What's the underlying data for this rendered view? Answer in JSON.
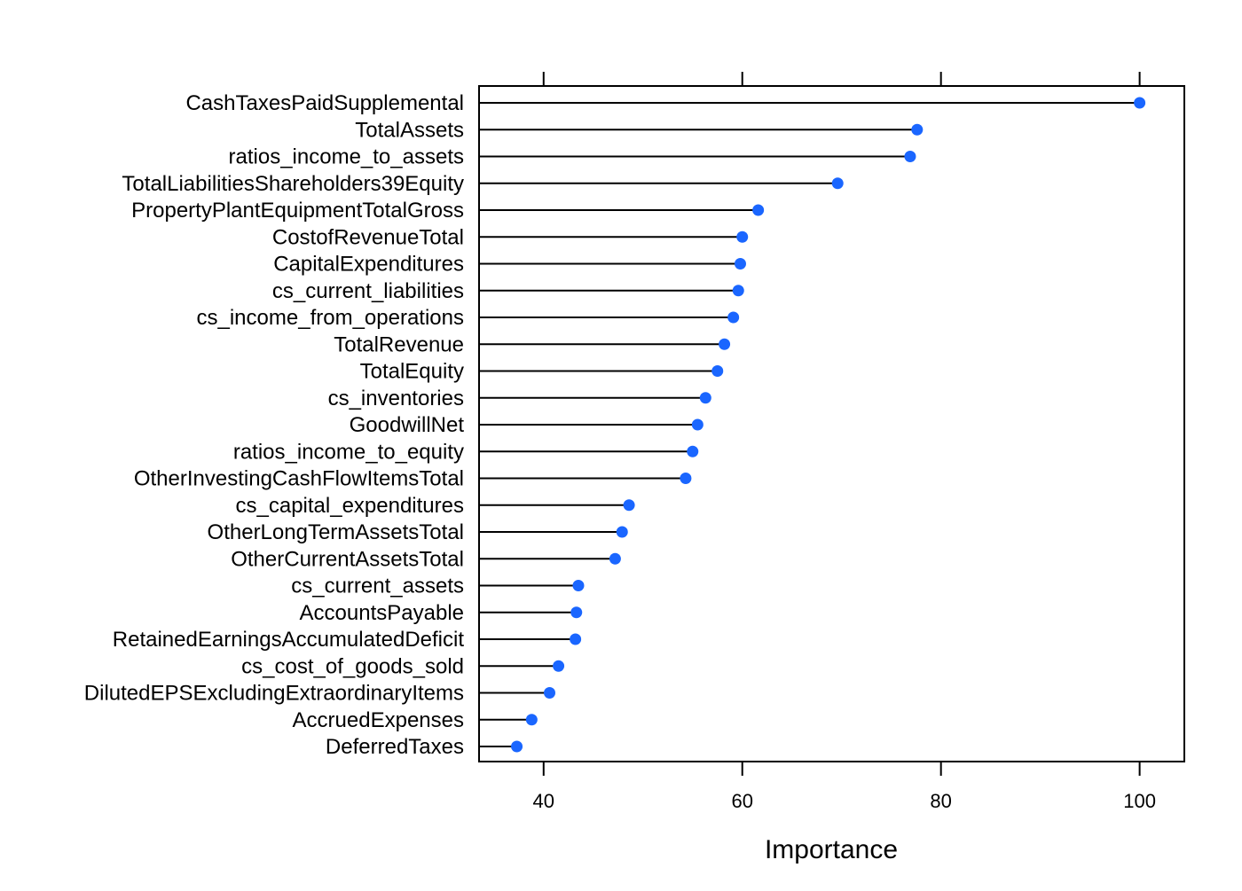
{
  "chart_data": {
    "type": "dot",
    "xlabel": "Importance",
    "xlim": [
      33.5,
      104.5
    ],
    "xticks": [
      40,
      60,
      80,
      100
    ],
    "grid": false,
    "legend": "none",
    "colors": {
      "point": "#1a66ff",
      "line": "#000000",
      "frame": "#000000"
    },
    "categories": [
      "CashTaxesPaidSupplemental",
      "TotalAssets",
      "ratios_income_to_assets",
      "TotalLiabilitiesShareholders39Equity",
      "PropertyPlantEquipmentTotalGross",
      "CostofRevenueTotal",
      "CapitalExpenditures",
      "cs_current_liabilities",
      "cs_income_from_operations",
      "TotalRevenue",
      "TotalEquity",
      "cs_inventories",
      "GoodwillNet",
      "ratios_income_to_equity",
      "OtherInvestingCashFlowItemsTotal",
      "cs_capital_expenditures",
      "OtherLongTermAssetsTotal",
      "OtherCurrentAssetsTotal",
      "cs_current_assets",
      "AccountsPayable",
      "RetainedEarningsAccumulatedDeficit",
      "cs_cost_of_goods_sold",
      "DilutedEPSExcludingExtraordinaryItems",
      "AccruedExpenses",
      "DeferredTaxes"
    ],
    "values": [
      100,
      77.6,
      76.9,
      69.6,
      61.6,
      60.0,
      59.8,
      59.6,
      59.1,
      58.2,
      57.5,
      56.3,
      55.5,
      55.0,
      54.3,
      48.6,
      47.9,
      47.2,
      43.5,
      43.3,
      43.2,
      41.5,
      40.6,
      38.8,
      37.3
    ]
  }
}
